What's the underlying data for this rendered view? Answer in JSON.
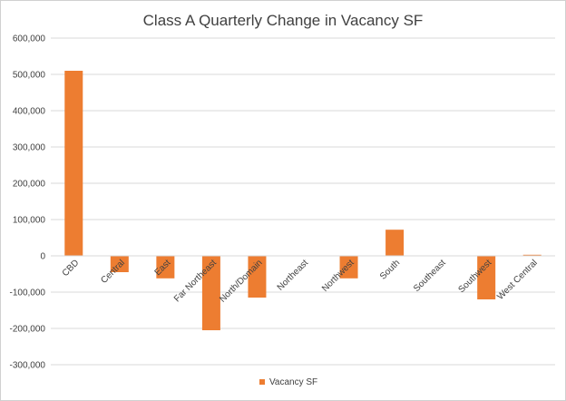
{
  "chart_data": {
    "type": "bar",
    "title": "Class A Quarterly Change in Vacancy SF",
    "xlabel": "",
    "ylabel": "",
    "ylim": [
      -300000,
      600000
    ],
    "yticks": [
      "600,000",
      "500,000",
      "400,000",
      "300,000",
      "200,000",
      "100,000",
      "0",
      "-100,000",
      "-200,000",
      "-300,000"
    ],
    "ytick_values": [
      600000,
      500000,
      400000,
      300000,
      200000,
      100000,
      0,
      -100000,
      -200000,
      -300000
    ],
    "categories": [
      "CBD",
      "Central",
      "East",
      "Far Northeast",
      "North/Domain",
      "Northeast",
      "Northwest",
      "South",
      "Southeast",
      "Southwest",
      "West Central"
    ],
    "series": [
      {
        "name": "Vacancy SF",
        "values": [
          510000,
          -45000,
          -62000,
          -205000,
          -115000,
          0,
          -62000,
          72000,
          0,
          -120000,
          3000
        ]
      }
    ],
    "grid": true,
    "legend": "bottom",
    "colors": {
      "bar": "#ED7D31",
      "grid": "#d9d9d9",
      "text": "#404040"
    }
  }
}
